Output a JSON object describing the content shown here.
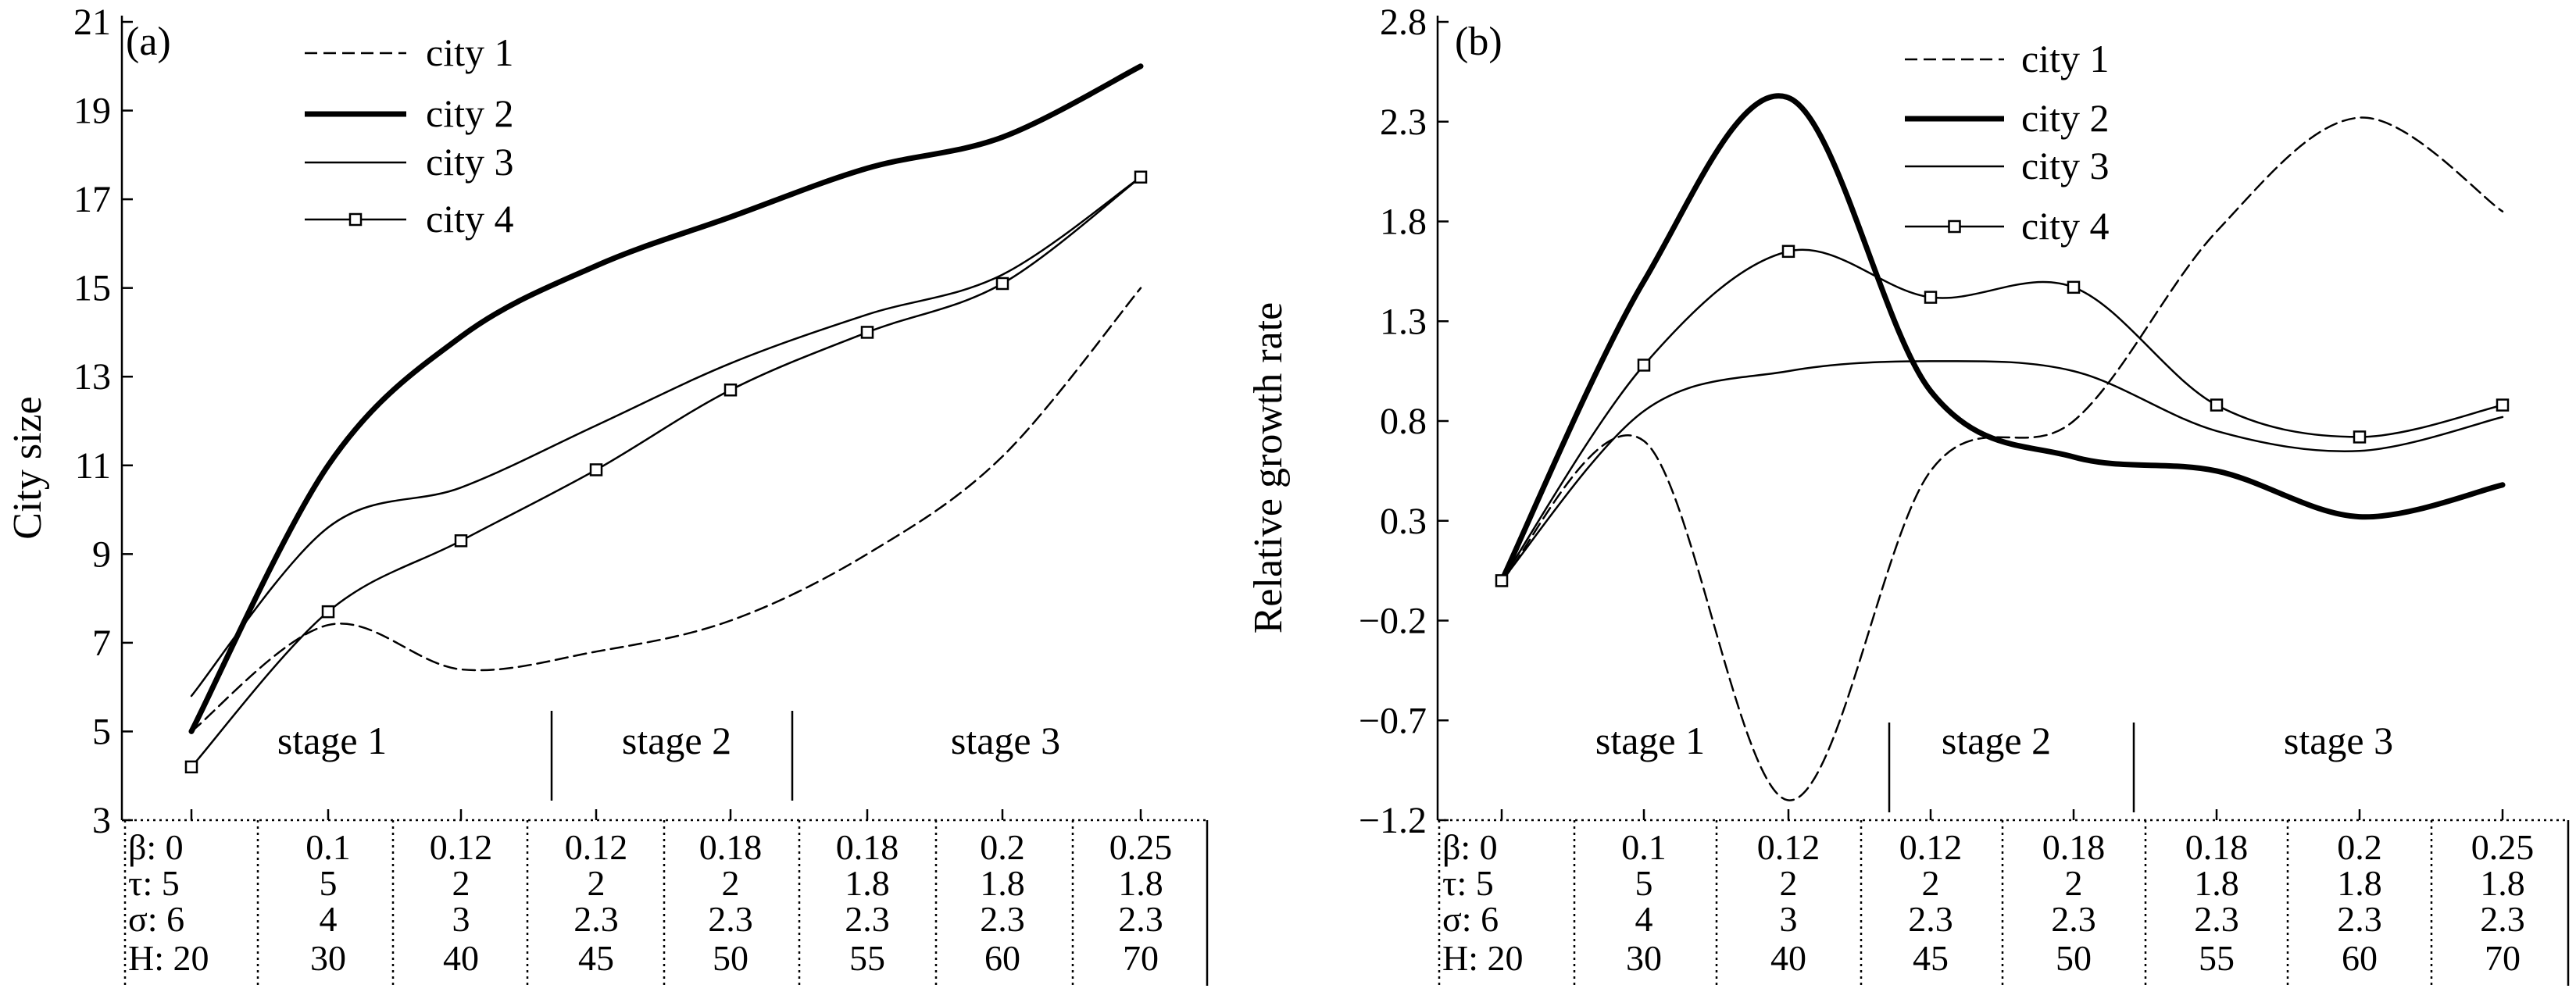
{
  "chart_data": [
    {
      "type": "line",
      "panel_label": "(a)",
      "ylabel": "City size",
      "ylim": [
        3,
        21
      ],
      "yticks": [
        3,
        5,
        7,
        9,
        11,
        13,
        15,
        17,
        19,
        21
      ],
      "x": [
        0,
        1,
        2,
        3,
        4,
        5,
        6,
        7
      ],
      "series": [
        {
          "name": "city 1",
          "style": "dashed",
          "values": [
            5.0,
            7.4,
            6.4,
            6.8,
            7.5,
            9.0,
            11.2,
            15.0
          ]
        },
        {
          "name": "city 2",
          "style": "thick",
          "values": [
            5.0,
            11.0,
            13.9,
            15.5,
            16.6,
            17.7,
            18.4,
            20.0
          ]
        },
        {
          "name": "city 3",
          "style": "thin",
          "values": [
            5.8,
            9.6,
            10.5,
            11.9,
            13.3,
            14.4,
            15.3,
            17.5
          ]
        },
        {
          "name": "city 4",
          "style": "square",
          "values": [
            4.2,
            7.7,
            9.3,
            10.9,
            12.7,
            14.0,
            15.1,
            17.5
          ]
        }
      ],
      "stages": [
        "stage 1",
        "stage 2",
        "stage 3"
      ],
      "table": {
        "rows": [
          [
            "β: 0",
            "0.1",
            "0.12",
            "0.12",
            "0.18",
            "0.18",
            "0.2",
            "0.25"
          ],
          [
            "τ: 5",
            "5",
            "2",
            "2",
            "2",
            "1.8",
            "1.8",
            "1.8"
          ],
          [
            "σ: 6",
            "4",
            "3",
            "2.3",
            "2.3",
            "2.3",
            "2.3",
            "2.3"
          ],
          [
            "H: 20",
            "30",
            "40",
            "45",
            "50",
            "55",
            "60",
            "70"
          ]
        ]
      },
      "legend_position": "top-left"
    },
    {
      "type": "line",
      "panel_label": "(b)",
      "ylabel": "Relative growth rate",
      "ylim": [
        -1.2,
        2.8
      ],
      "yticks": [
        "2.8",
        "2.3",
        "1.8",
        "1.3",
        "0.8",
        "0.3",
        "-0.2",
        "-0.7",
        "-1.2"
      ],
      "x": [
        0,
        1,
        2,
        3,
        4,
        5,
        6,
        7
      ],
      "series": [
        {
          "name": "city 1",
          "style": "dashed",
          "values": [
            0.0,
            0.7,
            -1.1,
            0.55,
            0.8,
            1.75,
            2.32,
            1.85
          ]
        },
        {
          "name": "city 2",
          "style": "thick",
          "values": [
            0.0,
            1.5,
            2.42,
            0.95,
            0.62,
            0.55,
            0.32,
            0.48
          ]
        },
        {
          "name": "city 3",
          "style": "thin",
          "values": [
            0.0,
            0.85,
            1.05,
            1.1,
            1.05,
            0.75,
            0.65,
            0.82
          ]
        },
        {
          "name": "city 4",
          "style": "square",
          "values": [
            0.0,
            1.08,
            1.65,
            1.42,
            1.47,
            0.88,
            0.72,
            0.88
          ]
        }
      ],
      "stages": [
        "stage 1",
        "stage 2",
        "stage 3"
      ],
      "table": {
        "rows": [
          [
            "β: 0",
            "0.1",
            "0.12",
            "0.12",
            "0.18",
            "0.18",
            "0.2",
            "0.25"
          ],
          [
            "τ: 5",
            "5",
            "2",
            "2",
            "2",
            "1.8",
            "1.8",
            "1.8"
          ],
          [
            "σ: 6",
            "4",
            "3",
            "2.3",
            "2.3",
            "2.3",
            "2.3",
            "2.3"
          ],
          [
            "H: 20",
            "30",
            "40",
            "45",
            "50",
            "55",
            "60",
            "70"
          ]
        ]
      },
      "legend_position": "top-left"
    }
  ]
}
